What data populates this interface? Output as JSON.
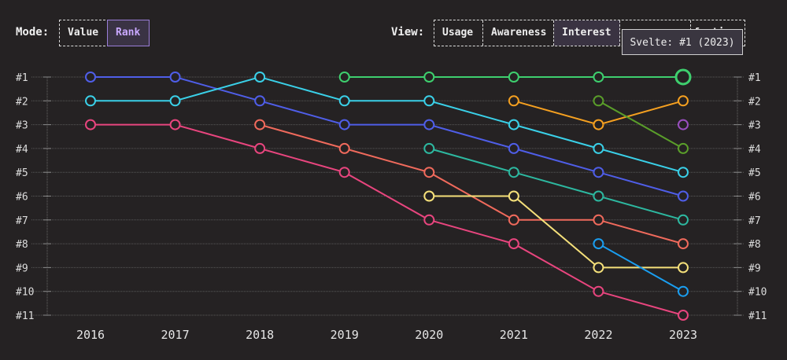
{
  "mode": {
    "label": "Mode:",
    "options": [
      "Value",
      "Rank"
    ],
    "active": "Rank"
  },
  "view": {
    "label": "View:",
    "options": [
      "Usage",
      "Awareness",
      "Interest",
      "",
      "Satisfaction"
    ],
    "active": "Interest"
  },
  "tooltip": {
    "text": "Svelte: #1 (2023)"
  },
  "chart_data": {
    "type": "line",
    "subtype": "bump",
    "x": [
      "2016",
      "2017",
      "2018",
      "2019",
      "2020",
      "2021",
      "2022",
      "2023"
    ],
    "y_ticks": [
      "#1",
      "#2",
      "#3",
      "#4",
      "#5",
      "#6",
      "#7",
      "#8",
      "#9",
      "#10",
      "#11"
    ],
    "ylim": [
      1,
      11
    ],
    "y_inverted": true,
    "grid": true,
    "highlight": {
      "series_name": "Svelte",
      "x": "2023",
      "rank": 1
    },
    "series": [
      {
        "color": "#4f5ee8",
        "values": [
          1,
          1,
          2,
          3,
          3,
          4,
          5,
          6
        ]
      },
      {
        "color": "#3ad0e8",
        "values": [
          2,
          2,
          1,
          2,
          2,
          3,
          4,
          5
        ]
      },
      {
        "color": "#e8457e",
        "values": [
          3,
          3,
          4,
          5,
          7,
          8,
          10,
          11
        ]
      },
      {
        "color": "#f06a5c",
        "values": [
          null,
          null,
          3,
          4,
          5,
          7,
          7,
          8
        ]
      },
      {
        "name": "Svelte",
        "color": "#3ecf6e",
        "values": [
          null,
          null,
          null,
          1,
          1,
          1,
          1,
          1
        ]
      },
      {
        "color": "#2db8a0",
        "values": [
          null,
          null,
          null,
          null,
          4,
          5,
          6,
          7
        ]
      },
      {
        "color": "#f5e07a",
        "values": [
          null,
          null,
          null,
          null,
          6,
          6,
          9,
          9
        ]
      },
      {
        "color": "#f5a020",
        "values": [
          null,
          null,
          null,
          null,
          null,
          2,
          3,
          2
        ]
      },
      {
        "color": "#5a9e2a",
        "values": [
          null,
          null,
          null,
          null,
          null,
          null,
          2,
          4
        ]
      },
      {
        "color": "#1a9ef0",
        "values": [
          null,
          null,
          null,
          null,
          null,
          null,
          8,
          10
        ]
      },
      {
        "color": "#9a4fc0",
        "values": [
          null,
          null,
          null,
          null,
          null,
          null,
          null,
          3
        ]
      }
    ]
  }
}
